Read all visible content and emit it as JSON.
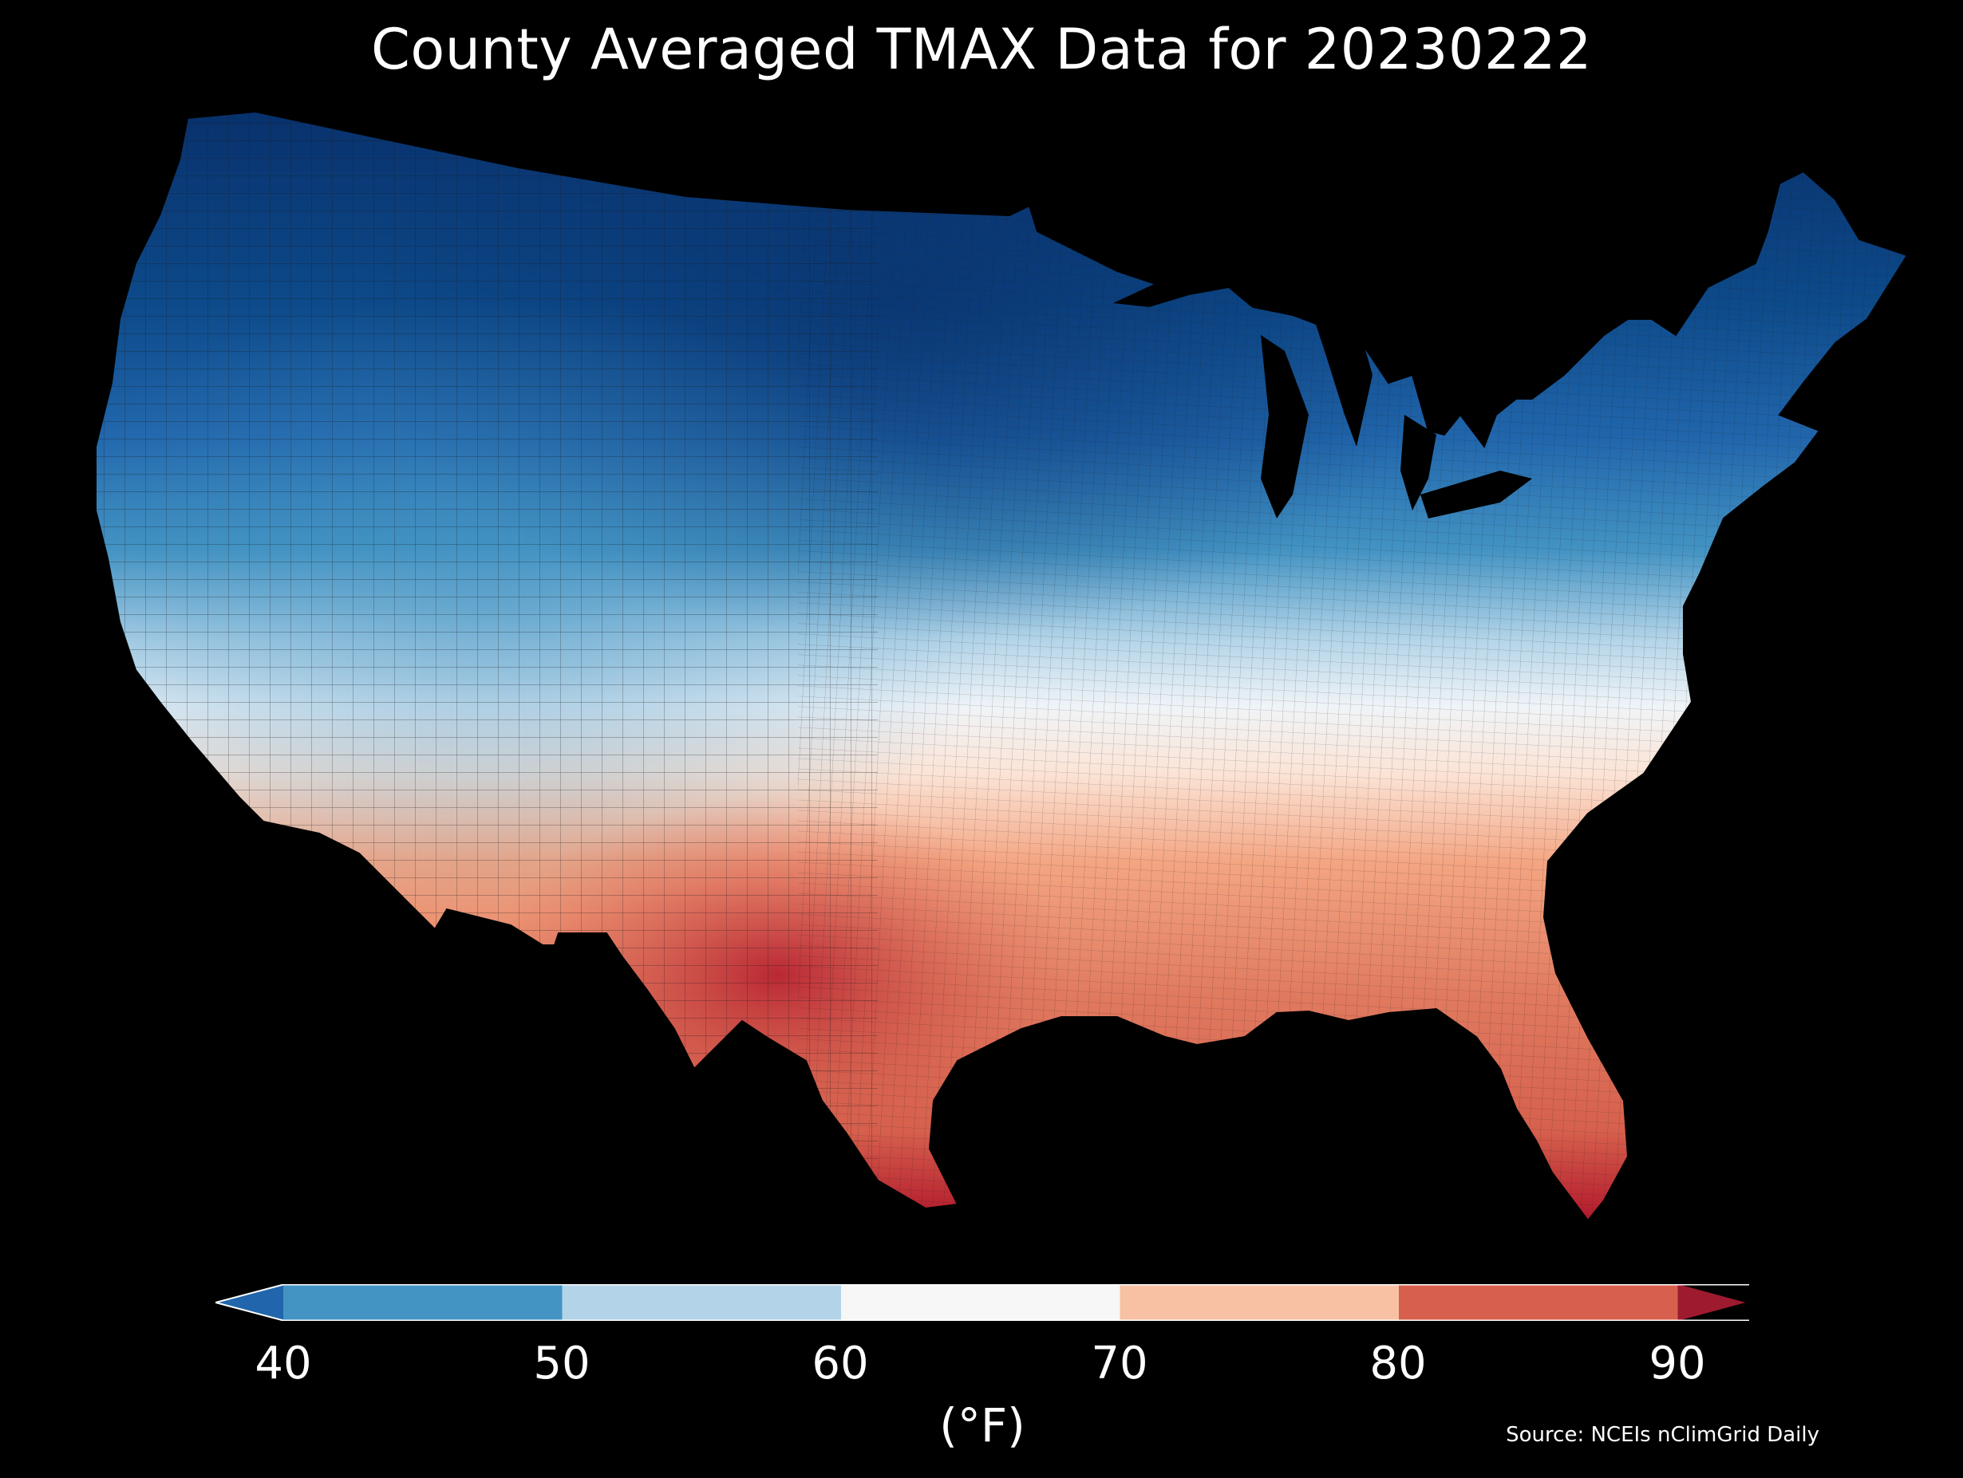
{
  "title": "County Averaged TMAX Data for 20230222",
  "colorbar": {
    "unit": "(°F)",
    "ticks": [
      "40",
      "50",
      "60",
      "70",
      "80",
      "90"
    ],
    "extend": "both",
    "segments": [
      {
        "from": null,
        "to": 40,
        "color": "#2166ac"
      },
      {
        "from": 40,
        "to": 50,
        "color": "#4393c3"
      },
      {
        "from": 50,
        "to": 60,
        "color": "#b3d4e8"
      },
      {
        "from": 60,
        "to": 70,
        "color": "#f7f7f7"
      },
      {
        "from": 70,
        "to": 80,
        "color": "#f8c1a4"
      },
      {
        "from": 80,
        "to": 90,
        "color": "#d6604d"
      },
      {
        "from": 90,
        "to": null,
        "color": "#9e1b2f"
      }
    ]
  },
  "source": "Source: NCEIs nClimGrid Daily",
  "map": {
    "region": "Contiguous United States",
    "units": "counties",
    "colormap": "RdBu_r",
    "background": "#000000",
    "border_color": "#1a1a1a"
  }
}
